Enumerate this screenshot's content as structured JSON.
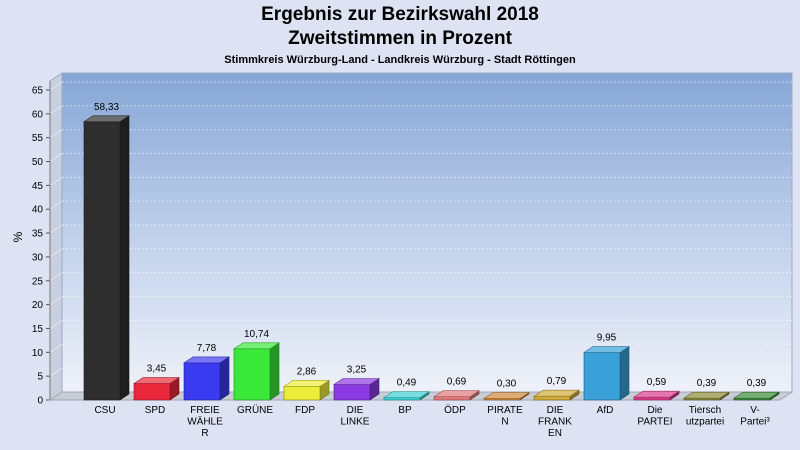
{
  "chart_data": {
    "type": "bar",
    "title": "Ergebnis zur Bezirkswahl 2018",
    "subtitle": "Zweitstimmen in Prozent",
    "subtitle2": "Stimmkreis Würzburg-Land - Landkreis Würzburg - Stadt Röttingen",
    "ylabel": "%",
    "ylim": [
      0,
      65
    ],
    "yticks": [
      0,
      5,
      10,
      15,
      20,
      25,
      30,
      35,
      40,
      45,
      50,
      55,
      60,
      65
    ],
    "grid": true,
    "categories": [
      [
        "CSU"
      ],
      [
        "SPD"
      ],
      [
        "FREIE",
        "WÄHLE",
        "R"
      ],
      [
        "GRÜNE"
      ],
      [
        "FDP"
      ],
      [
        "DIE",
        "LINKE"
      ],
      [
        "BP"
      ],
      [
        "ÖDP"
      ],
      [
        "PIRATE",
        "N"
      ],
      [
        "DIE",
        "FRANK",
        "EN"
      ],
      [
        "AfD"
      ],
      [
        "Die",
        "PARTEI"
      ],
      [
        "Tiersch",
        "utzpartei"
      ],
      [
        "V-",
        "Partei³"
      ]
    ],
    "values": [
      58.33,
      3.45,
      7.78,
      10.74,
      2.86,
      3.25,
      0.49,
      0.69,
      0.3,
      0.79,
      9.95,
      0.59,
      0.39,
      0.39
    ],
    "value_labels": [
      "58,33",
      "3,45",
      "7,78",
      "10,74",
      "2,86",
      "3,25",
      "0,49",
      "0,69",
      "0,30",
      "0,79",
      "9,95",
      "0,59",
      "0,39",
      "0,39"
    ],
    "colors": [
      "#2e2e2e",
      "#e8283a",
      "#3a3af0",
      "#3ae83a",
      "#ecec3a",
      "#8a3ae0",
      "#3ad0d0",
      "#e07878",
      "#d08a3a",
      "#d0aa3a",
      "#3aa0d8",
      "#d83a8a",
      "#8a8a3a",
      "#3a8a3a"
    ]
  }
}
